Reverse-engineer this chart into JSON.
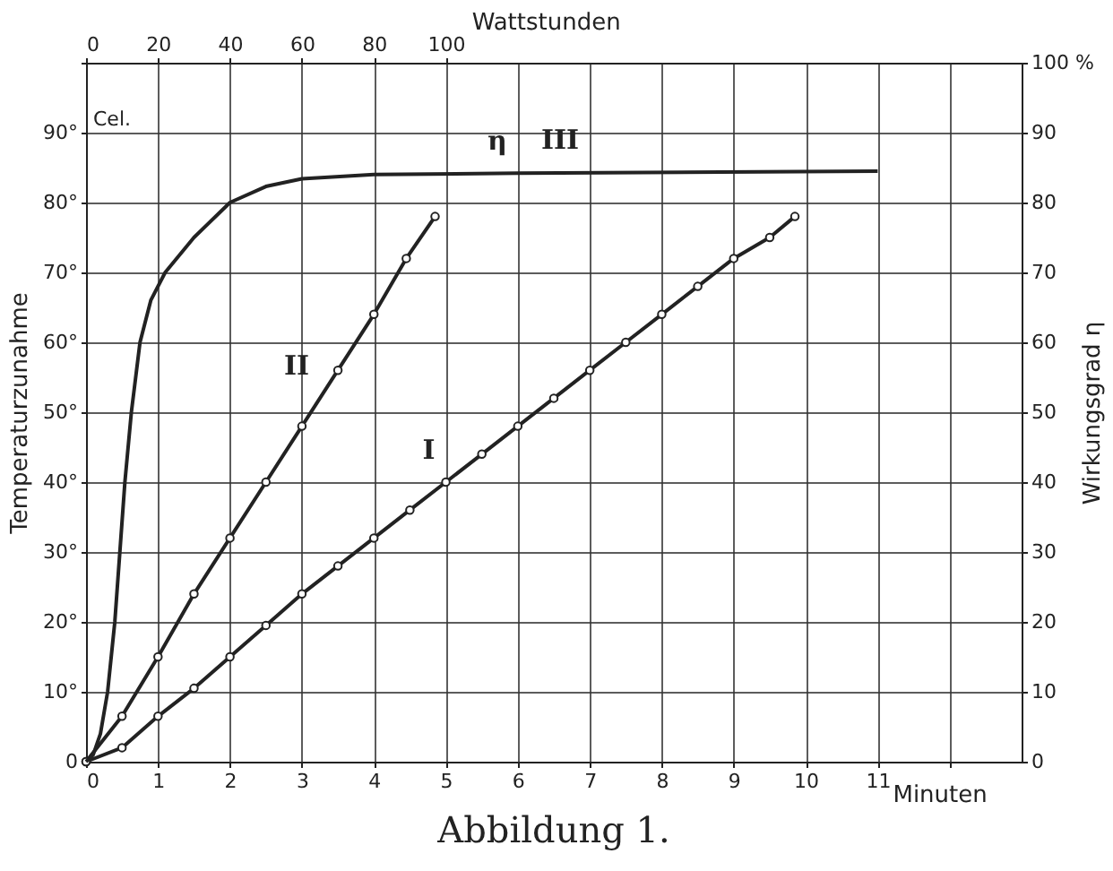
{
  "chart_data": {
    "type": "line",
    "title": "Abbildung 1.",
    "xlabel": "Minuten",
    "ylabel": "Temperaturzunahme",
    "y2label": "Wirkungsgrad η",
    "x2label": "Wattstunden",
    "xlim": [
      0,
      13
    ],
    "xticks": [
      0,
      1,
      2,
      3,
      4,
      5,
      6,
      7,
      8,
      9,
      10,
      11,
      {
        "value": 12,
        "label": null
      }
    ],
    "x2lim": [
      0,
      260
    ],
    "x2ticks": [
      0,
      20,
      40,
      60,
      80,
      100
    ],
    "ylim": [
      0,
      100
    ],
    "yticks": [
      0,
      {
        "value": 10,
        "label": "10°"
      },
      {
        "value": 20,
        "label": "20°"
      },
      {
        "value": 30,
        "label": "30°"
      },
      {
        "value": 40,
        "label": "40°"
      },
      {
        "value": 50,
        "label": "50°"
      },
      {
        "value": 60,
        "label": "60°"
      },
      {
        "value": 70,
        "label": "70°"
      },
      {
        "value": 80,
        "label": "80°"
      },
      {
        "value": 90,
        "label": "90°"
      },
      {
        "value": 100,
        "label": null
      }
    ],
    "y2lim": [
      0,
      100
    ],
    "y2ticks": [
      0,
      10,
      20,
      30,
      40,
      50,
      60,
      70,
      80,
      90,
      {
        "value": 100,
        "label": "100 %"
      }
    ],
    "grid": true,
    "line_style": "solid",
    "series": [
      {
        "color": "#222222",
        "marker": "circle",
        "x": [
          0,
          0.5,
          1,
          1.5,
          2,
          2.5,
          3,
          3.5,
          4,
          4.5,
          5,
          5.5,
          6,
          6.5,
          7,
          7.5,
          8,
          8.5,
          9,
          9.5,
          9.85
        ],
        "values": [
          0,
          2,
          6.5,
          10.5,
          15,
          19.5,
          24,
          28,
          32,
          36,
          40,
          44,
          48,
          52,
          56,
          60,
          64,
          68,
          72,
          75,
          78
        ]
      },
      {
        "color": "#222222",
        "marker": "circle",
        "x": [
          0,
          0.5,
          1,
          1.5,
          2,
          2.5,
          3,
          3.5,
          4,
          4.45,
          4.85
        ],
        "values": [
          0,
          6.5,
          15,
          24,
          32,
          40,
          48,
          56,
          64,
          72,
          78
        ]
      },
      {
        "color": "#222222",
        "marker": "none",
        "axis": "y2",
        "x": [
          0,
          0.1,
          0.2,
          0.3,
          0.4,
          0.47,
          0.54,
          0.63,
          0.75,
          0.9,
          1.1,
          1.5,
          2,
          2.5,
          3,
          4,
          6,
          11
        ],
        "values": [
          0,
          1,
          4,
          10,
          20,
          30,
          40,
          50,
          60,
          66,
          70,
          75,
          80,
          82.3,
          83.4,
          84,
          84.2,
          84.5
        ]
      }
    ],
    "annotations": [
      "Cel.",
      {
        "text": "I",
        "x": 5.0,
        "y": 40
      },
      {
        "text": "II",
        "x": 3.25,
        "y": 52
      },
      {
        "text": "III",
        "x": 7.0,
        "y": 84.3
      },
      {
        "text": "η",
        "x": 6.0,
        "y": 84.2
      }
    ]
  }
}
